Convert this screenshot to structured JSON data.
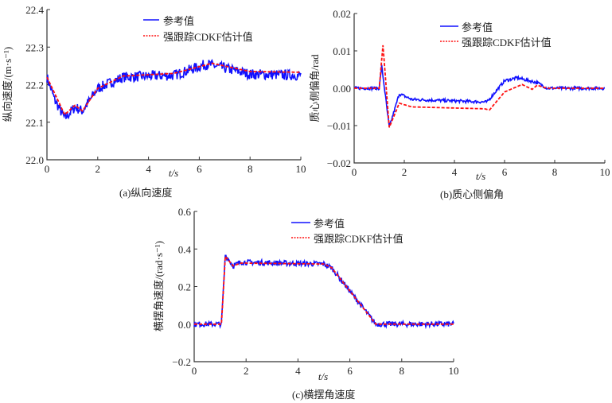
{
  "legend": {
    "reference": "参考值",
    "estimate": "强跟踪CDKF估计值"
  },
  "colors": {
    "reference": "#1010ff",
    "estimate": "#ff1010"
  },
  "chart_data": [
    {
      "type": "line",
      "caption": "(a)纵向速度",
      "xlabel": "t/s",
      "ylabel": "纵向速度/(m·s⁻¹)",
      "xlim": [
        0,
        10
      ],
      "ylim": [
        22.0,
        22.4
      ],
      "xticks": [
        "0",
        "2",
        "4",
        "6",
        "8",
        "10"
      ],
      "yticks": [
        "22.0",
        "22.1",
        "22.2",
        "22.3",
        "22.4"
      ],
      "noise": 0.014,
      "series": [
        {
          "name": "参考值",
          "x": [
            0,
            0.3,
            0.7,
            1.1,
            1.4,
            2,
            3,
            5,
            6.3,
            8,
            10
          ],
          "y": [
            22.22,
            22.16,
            22.11,
            22.14,
            22.13,
            22.19,
            22.22,
            22.225,
            22.255,
            22.228,
            22.225
          ]
        },
        {
          "name": "强跟踪CDKF估计值",
          "x": [
            0,
            0.7,
            1.1,
            1.4,
            2,
            3,
            5,
            6.5,
            8,
            10
          ],
          "y": [
            22.22,
            22.12,
            22.145,
            22.13,
            22.19,
            22.223,
            22.23,
            22.257,
            22.235,
            22.233
          ]
        }
      ]
    },
    {
      "type": "line",
      "caption": "(b)质心侧偏角",
      "xlabel": "t/s",
      "ylabel": "质心侧偏角/rad",
      "xlim": [
        0,
        10
      ],
      "ylim": [
        -0.02,
        0.02
      ],
      "xticks": [
        "0",
        "2",
        "4",
        "6",
        "8",
        "10"
      ],
      "yticks": [
        "−0.02",
        "−0.01",
        "0.00",
        "0.01",
        "0.02"
      ],
      "noise": 0.0004,
      "series": [
        {
          "name": "参考值",
          "x": [
            0,
            1,
            1.1,
            1.4,
            1.8,
            2.3,
            5.3,
            6,
            6.5,
            7.3,
            7.7,
            10
          ],
          "y": [
            0,
            0,
            0.006,
            -0.0105,
            -0.0015,
            -0.003,
            -0.0037,
            0.002,
            0.0028,
            0.0015,
            0,
            0
          ]
        },
        {
          "name": "强跟踪CDKF估计值",
          "x": [
            0,
            1,
            1.15,
            1.4,
            1.8,
            2.3,
            5.2,
            5.4,
            6,
            6.7,
            7.1,
            7.3,
            7.7,
            10
          ],
          "y": [
            0,
            0,
            0.0115,
            -0.0105,
            -0.004,
            -0.005,
            -0.0055,
            -0.0058,
            -0.001,
            0.001,
            -0.0003,
            0.0008,
            0,
            0
          ]
        }
      ]
    },
    {
      "type": "line",
      "caption": "(c)横摆角速度",
      "xlabel": "t/s",
      "ylabel": "横摆角速度/(rad·s⁻¹)",
      "xlim": [
        0,
        10
      ],
      "ylim": [
        -0.2,
        0.6
      ],
      "xticks": [
        "0",
        "2",
        "4",
        "6",
        "8",
        "10"
      ],
      "yticks": [
        "−0.2",
        "0.0",
        "0.2",
        "0.4",
        "0.6"
      ],
      "noise": 0.014,
      "series": [
        {
          "name": "参考值",
          "x": [
            0,
            1.05,
            1.2,
            1.5,
            1.8,
            5,
            5.3,
            7.0,
            10
          ],
          "y": [
            0,
            0,
            0.37,
            0.31,
            0.33,
            0.32,
            0.3,
            0,
            0
          ]
        },
        {
          "name": "强跟踪CDKF估计值",
          "x": [
            0,
            1.05,
            1.2,
            1.5,
            1.8,
            5,
            5.3,
            7.0,
            10
          ],
          "y": [
            0,
            0,
            0.36,
            0.31,
            0.325,
            0.32,
            0.3,
            0,
            0
          ]
        }
      ]
    }
  ]
}
